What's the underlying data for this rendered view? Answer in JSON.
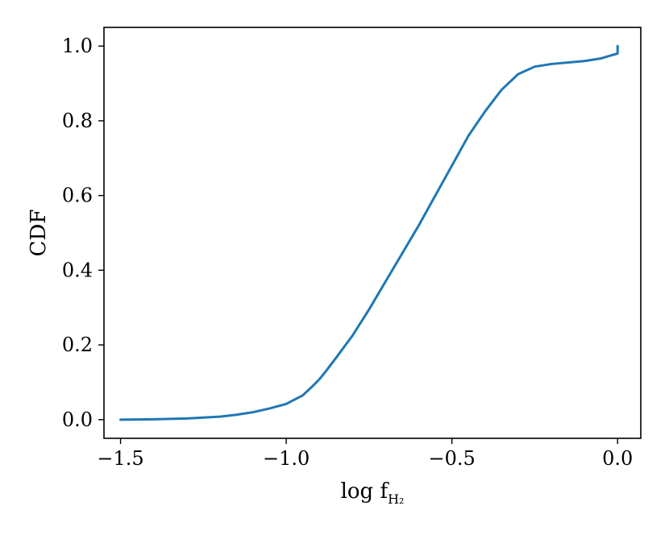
{
  "chart_data": {
    "type": "line",
    "title": "",
    "xlabel": "log f",
    "xlabel_subscript": "H₂",
    "ylabel": "CDF",
    "xlim": [
      -1.55,
      0.07
    ],
    "ylim": [
      -0.05,
      1.05
    ],
    "xticks": [
      -1.5,
      -1.0,
      -0.5,
      0.0
    ],
    "xtick_labels": [
      "−1.5",
      "−1.0",
      "−0.5",
      "0.0"
    ],
    "yticks": [
      0.0,
      0.2,
      0.4,
      0.6,
      0.8,
      1.0
    ],
    "ytick_labels": [
      "0.0",
      "0.2",
      "0.4",
      "0.6",
      "0.8",
      "1.0"
    ],
    "grid": false,
    "legend": false,
    "series": [
      {
        "color": "#1f77b4",
        "x": [
          -1.5,
          -1.4,
          -1.3,
          -1.2,
          -1.15,
          -1.1,
          -1.05,
          -1.0,
          -0.95,
          -0.92,
          -0.9,
          -0.88,
          -0.85,
          -0.8,
          -0.75,
          -0.7,
          -0.65,
          -0.6,
          -0.55,
          -0.5,
          -0.45,
          -0.4,
          -0.37,
          -0.35,
          -0.3,
          -0.25,
          -0.2,
          -0.1,
          -0.05,
          -0.02,
          0.0,
          0.0
        ],
        "y": [
          0.0,
          0.001,
          0.003,
          0.008,
          0.013,
          0.02,
          0.03,
          0.042,
          0.065,
          0.09,
          0.108,
          0.13,
          0.165,
          0.225,
          0.295,
          0.37,
          0.445,
          0.52,
          0.6,
          0.68,
          0.76,
          0.825,
          0.86,
          0.883,
          0.925,
          0.945,
          0.952,
          0.96,
          0.967,
          0.975,
          0.98,
          1.0
        ]
      }
    ]
  }
}
